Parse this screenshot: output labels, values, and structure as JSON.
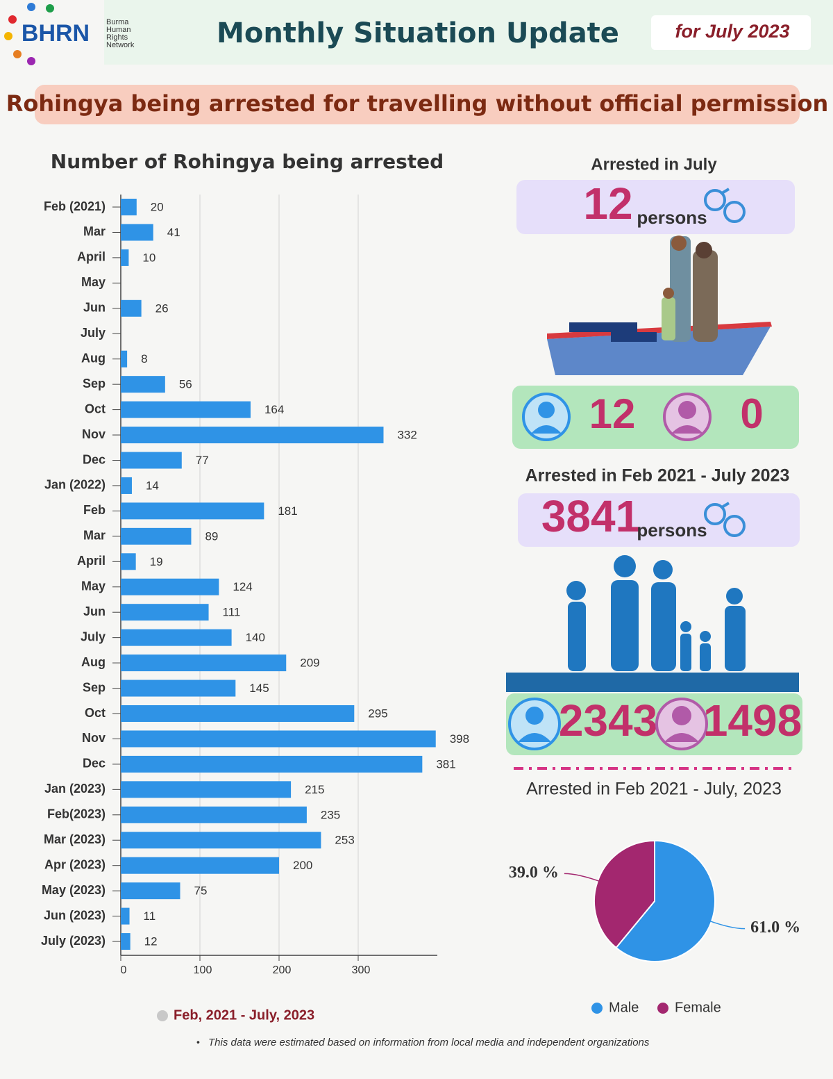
{
  "header": {
    "logo": "BHRN",
    "org": [
      "Burma",
      "Human",
      "Rights",
      "Network"
    ],
    "title": "Monthly Situation Update",
    "period": "for July 2023"
  },
  "banner": "Rohingya being arrested for travelling without official permission",
  "july": {
    "title": "Arrested in July",
    "count": 12,
    "unit": "persons",
    "male": 12,
    "female": 0
  },
  "total": {
    "title": "Arrested in Feb 2021 - July 2023",
    "count": 3841,
    "unit": "persons",
    "male": 2343,
    "female": 1498
  },
  "chart_data": [
    {
      "type": "bar",
      "orientation": "horizontal",
      "title": "Number of Rohingya being arrested",
      "categories": [
        "Feb (2021)",
        "Mar",
        "April",
        "May",
        "Jun",
        "July",
        "Aug",
        "Sep",
        "Oct",
        "Nov",
        "Dec",
        "Jan (2022)",
        "Feb",
        "Mar",
        "April",
        "May",
        "Jun",
        "July",
        "Aug",
        "Sep",
        "Oct",
        "Nov",
        "Dec",
        "Jan (2023)",
        "Feb(2023)",
        "Mar (2023)",
        "Apr (2023)",
        "May (2023)",
        "Jun (2023)",
        "July (2023)"
      ],
      "series": [
        {
          "name": "Feb, 2021 - July, 2023",
          "color": "#2f93e6",
          "values": [
            20,
            41,
            10,
            null,
            26,
            null,
            8,
            56,
            164,
            332,
            77,
            14,
            181,
            89,
            19,
            124,
            111,
            140,
            209,
            145,
            295,
            398,
            381,
            215,
            235,
            253,
            200,
            75,
            11,
            12
          ]
        }
      ],
      "xlim": [
        0,
        400
      ],
      "xticks": [
        0,
        100,
        200,
        300
      ],
      "grid": true
    },
    {
      "type": "pie",
      "title": "Arrested in Feb 2021 - July, 2023",
      "categories": [
        "Male",
        "Female"
      ],
      "values": [
        61,
        39
      ],
      "value_labels": [
        "61.0 %",
        "39.0 %"
      ],
      "colors": [
        "#2f93e6",
        "#a3276f"
      ],
      "legend": "bottom"
    }
  ],
  "footnote": "This data were estimated based on information from local media and independent organizations"
}
